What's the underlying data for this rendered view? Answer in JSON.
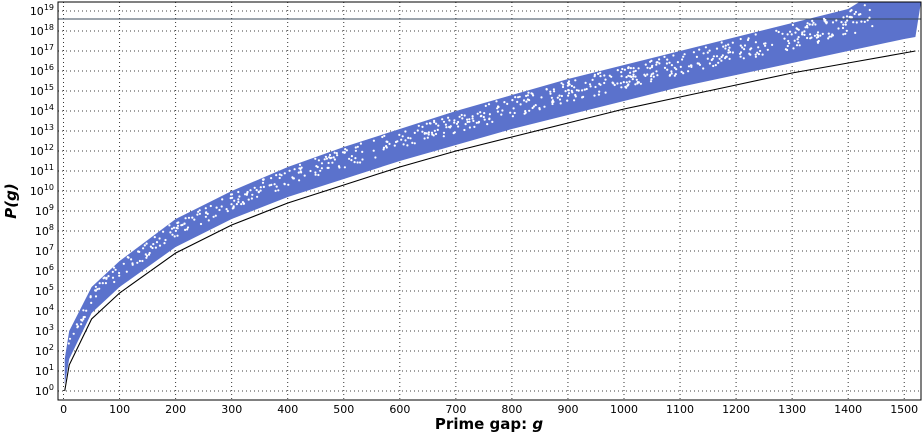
{
  "chart_data": {
    "type": "scatter",
    "title": "",
    "xlabel_prefix": "Prime gap: ",
    "xlabel_var": "g",
    "ylabel": "P(g)",
    "xlim": [
      -10,
      1530
    ],
    "ylim_log10": [
      -0.45,
      19.45
    ],
    "yscale": "log",
    "grid": true,
    "x_ticks": [
      0,
      100,
      200,
      300,
      400,
      500,
      600,
      700,
      800,
      900,
      1000,
      1100,
      1200,
      1300,
      1400,
      1500
    ],
    "x_tick_labels": [
      "0",
      "100",
      "200",
      "300",
      "400",
      "500",
      "600",
      "700",
      "800",
      "900",
      "1000",
      "1100",
      "1200",
      "1300",
      "1400",
      "1500"
    ],
    "y_tick_exponents": [
      0,
      1,
      2,
      3,
      4,
      5,
      6,
      7,
      8,
      9,
      10,
      11,
      12,
      13,
      14,
      15,
      16,
      17,
      18,
      19
    ],
    "y_tick_base": "10",
    "y_tick_exp_labels": [
      "0",
      "1",
      "2",
      "3",
      "4",
      "5",
      "6",
      "7",
      "8",
      "9",
      "10",
      "11",
      "12",
      "13",
      "14",
      "15",
      "16",
      "17",
      "18",
      "19"
    ],
    "horizontal_line_log10": 18.6,
    "band": {
      "color": "#5b72cc",
      "upper_log10": [
        [
          2,
          1.6
        ],
        [
          10,
          3.0
        ],
        [
          50,
          5.2
        ],
        [
          100,
          6.5
        ],
        [
          200,
          8.6
        ],
        [
          300,
          10.0
        ],
        [
          400,
          11.2
        ],
        [
          500,
          12.2
        ],
        [
          600,
          13.1
        ],
        [
          700,
          14.0
        ],
        [
          800,
          14.8
        ],
        [
          900,
          15.6
        ],
        [
          1000,
          16.3
        ],
        [
          1100,
          17.0
        ],
        [
          1200,
          17.7
        ],
        [
          1300,
          18.4
        ],
        [
          1400,
          19.1
        ],
        [
          1420,
          19.45
        ]
      ],
      "lower_log10": [
        [
          2,
          0.3
        ],
        [
          10,
          1.6
        ],
        [
          50,
          3.9
        ],
        [
          100,
          5.2
        ],
        [
          200,
          7.2
        ],
        [
          300,
          8.6
        ],
        [
          400,
          9.7
        ],
        [
          500,
          10.6
        ],
        [
          600,
          11.5
        ],
        [
          700,
          12.3
        ],
        [
          800,
          13.1
        ],
        [
          900,
          13.8
        ],
        [
          1000,
          14.5
        ],
        [
          1100,
          15.2
        ],
        [
          1200,
          15.8
        ],
        [
          1300,
          16.4
        ],
        [
          1400,
          17.0
        ],
        [
          1500,
          17.6
        ],
        [
          1520,
          17.7
        ]
      ]
    },
    "lower_bound_curve": {
      "color": "#000000",
      "points_log10": [
        [
          2,
          0.0
        ],
        [
          10,
          1.3
        ],
        [
          50,
          3.6
        ],
        [
          100,
          4.9
        ],
        [
          200,
          6.9
        ],
        [
          300,
          8.3
        ],
        [
          400,
          9.4
        ],
        [
          500,
          10.3
        ],
        [
          600,
          11.2
        ],
        [
          700,
          12.0
        ],
        [
          800,
          12.7
        ],
        [
          900,
          13.4
        ],
        [
          1000,
          14.1
        ],
        [
          1100,
          14.7
        ],
        [
          1200,
          15.3
        ],
        [
          1300,
          15.9
        ],
        [
          1400,
          16.4
        ],
        [
          1500,
          16.9
        ],
        [
          1520,
          17.0
        ]
      ]
    },
    "points_color": "#ffffff",
    "points_count": 700
  }
}
